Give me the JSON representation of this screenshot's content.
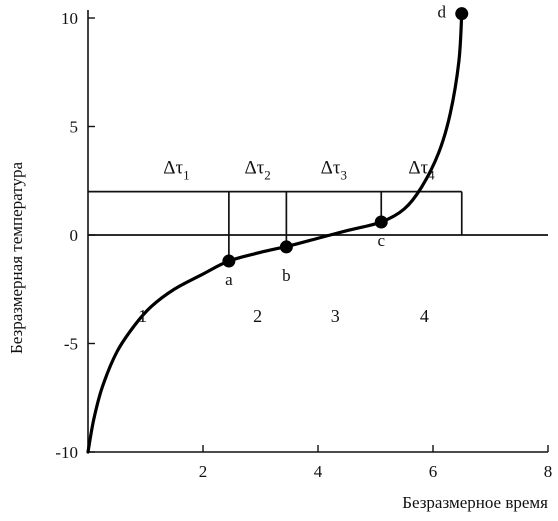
{
  "chart_data": {
    "type": "line",
    "xlabel": "Безразмерное время",
    "ylabel": "Безразмерная температура",
    "xlim": [
      0,
      8
    ],
    "ylim": [
      -10,
      10
    ],
    "x_ticks": [
      2,
      4,
      6,
      8
    ],
    "y_ticks": [
      -10,
      -5,
      0,
      5,
      10
    ],
    "grid": false,
    "series": [
      {
        "x": [
          0.0,
          0.1,
          0.25,
          0.5,
          0.8,
          1.1,
          1.5,
          2.0,
          2.45,
          3.0,
          3.5,
          4.0,
          4.5,
          5.1,
          5.5,
          5.8,
          6.1,
          6.3,
          6.45,
          6.5
        ],
        "y": [
          -10.0,
          -8.5,
          -7.0,
          -5.4,
          -4.2,
          -3.3,
          -2.5,
          -1.8,
          -1.2,
          -0.8,
          -0.5,
          -0.15,
          0.2,
          0.6,
          1.2,
          2.2,
          3.8,
          5.6,
          8.0,
          10.2
        ]
      }
    ],
    "points": [
      {
        "label": "a",
        "x": 2.45,
        "y": -1.2
      },
      {
        "label": "b",
        "x": 3.45,
        "y": -0.55
      },
      {
        "label": "c",
        "x": 5.1,
        "y": 0.6
      },
      {
        "label": "d",
        "x": 6.5,
        "y": 10.2
      }
    ],
    "horizontal_line_y": 2.0,
    "interval_bounds_x": [
      0.0,
      2.45,
      3.45,
      5.1,
      6.5
    ],
    "intervals": [
      {
        "symbol": "Δτ",
        "sub": "1"
      },
      {
        "symbol": "Δτ",
        "sub": "2"
      },
      {
        "symbol": "Δτ",
        "sub": "3"
      },
      {
        "symbol": "Δτ",
        "sub": "4"
      }
    ],
    "regions": [
      {
        "label": "1",
        "x": 0.95,
        "y": -4.0
      },
      {
        "label": "2",
        "x": 2.95,
        "y": -4.0
      },
      {
        "label": "3",
        "x": 4.3,
        "y": -4.0
      },
      {
        "label": "4",
        "x": 5.85,
        "y": -4.0
      }
    ]
  }
}
